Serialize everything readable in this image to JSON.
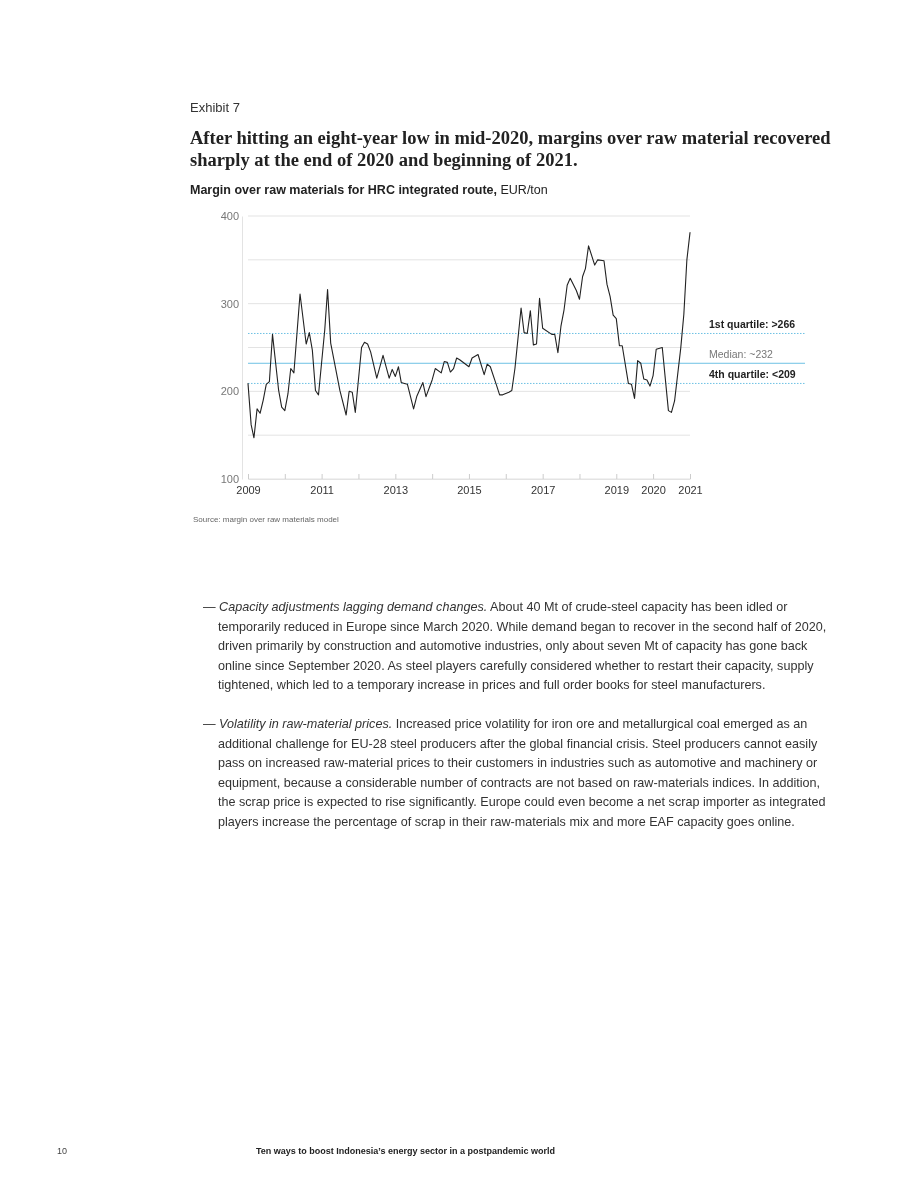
{
  "chart_data": {
    "type": "line",
    "title": "After hitting an eight-year low in mid-2020, margins over raw material recovered sharply at the end of 2020 and beginning of 2021.",
    "ylabel": "Margin over raw materials for HRC integrated route, EUR/ton",
    "annotations": [
      "Exhibit 7",
      "Source: margin over raw materials model",
      "— Capacity adjustments lagging demand changes. About 40 Mt of crude-steel capacity has been idled or temporarily reduced in Europe since March 2020. While demand began to recover in the second half of 2020, driven primarily by construction and automotive industries, only about seven Mt of capacity has gone back online since September 2020. As steel players carefully considered whether to restart their capacity, supply tightened, which led to a temporary increase in prices and full order books for steel manufacturers.",
      "— Volatility in raw-material prices. Increased price volatility for iron ore and metallurgical coal emerged as an additional challenge for EU-28 steel producers after the global financial crisis. Steel producers cannot easily pass on increased raw-material prices to their customers in industries such as automotive and machinery or equipment, because a considerable number of contracts are not based on raw-materials indices. In addition, the scrap price is expected to rise significantly. Europe could even become a net scrap importer as integrated players increase the percentage of scrap in their raw-materials mix and more EAF capacity goes online.",
      "10",
      "Ten ways to boost Indonesia’s energy sector in a postpandemic world"
    ],
    "x": [
      "2009-01",
      "2009-02",
      "2009-03",
      "2009-04",
      "2009-05",
      "2009-06",
      "2009-07",
      "2009-08",
      "2009-09",
      "2009-11",
      "2009-12",
      "2010-01",
      "2010-02",
      "2010-03",
      "2010-04",
      "2010-06",
      "2010-08",
      "2010-09",
      "2010-10",
      "2010-11",
      "2010-12",
      "2011-02",
      "2011-03",
      "2011-04",
      "2011-07",
      "2011-09",
      "2011-10",
      "2011-11",
      "2011-12",
      "2012-02",
      "2012-03",
      "2012-04",
      "2012-05",
      "2012-07",
      "2012-09",
      "2012-11",
      "2012-12",
      "2013-01",
      "2013-02",
      "2013-03",
      "2013-04",
      "2013-05",
      "2013-07",
      "2013-08",
      "2013-10",
      "2013-11",
      "2014-01",
      "2014-02",
      "2014-04",
      "2014-05",
      "2014-06",
      "2014-07",
      "2014-08",
      "2014-09",
      "2014-10",
      "2015-01",
      "2015-02",
      "2015-04",
      "2015-06",
      "2015-07",
      "2015-08",
      "2015-10",
      "2015-11",
      "2015-12",
      "2016-02",
      "2016-03",
      "2016-04",
      "2016-06",
      "2016-07",
      "2016-08",
      "2016-09",
      "2016-10",
      "2016-11",
      "2016-12",
      "2017-01",
      "2017-04",
      "2017-05",
      "2017-06",
      "2017-07",
      "2017-08",
      "2017-09",
      "2017-10",
      "2017-12",
      "2018-01",
      "2018-02",
      "2018-03",
      "2018-04",
      "2018-06",
      "2018-07",
      "2018-09",
      "2018-10",
      "2018-11",
      "2018-12",
      "2019-01",
      "2019-02",
      "2019-03",
      "2019-05",
      "2019-06",
      "2019-07",
      "2019-08",
      "2019-09",
      "2019-10",
      "2019-11",
      "2019-12",
      "2020-01",
      "2020-02",
      "2020-04",
      "2020-06",
      "2020-07",
      "2020-08",
      "2020-10",
      "2020-11",
      "2020-12",
      "2021-01"
    ],
    "series": [
      {
        "color": "#222222",
        "values": [
          209,
          162,
          147,
          180,
          175,
          190,
          208,
          211,
          265,
          201,
          182,
          178,
          197,
          226,
          221,
          311,
          254,
          267,
          247,
          201,
          196,
          270,
          316,
          255,
          201,
          173,
          200,
          199,
          176,
          250,
          256,
          254,
          245,
          215,
          241,
          215,
          225,
          217,
          228,
          210,
          209,
          208,
          180,
          194,
          210,
          194,
          213,
          226,
          221,
          234,
          233,
          222,
          226,
          238,
          236,
          228,
          238,
          242,
          219,
          231,
          228,
          207,
          196,
          196,
          199,
          201,
          226,
          295,
          267,
          266,
          292,
          253,
          254,
          306,
          272,
          265,
          265,
          244,
          274,
          293,
          321,
          329,
          315,
          305,
          331,
          340,
          366,
          344,
          350,
          349,
          322,
          308,
          287,
          283,
          252,
          252,
          209,
          208,
          192,
          235,
          232,
          214,
          213,
          206,
          218,
          248,
          250,
          178,
          176,
          189,
          249,
          288,
          350,
          381
        ]
      }
    ],
    "xlim": [
      "2009-01",
      "2021-01"
    ],
    "xticks": [
      {
        "value": "2009",
        "label": "2009"
      },
      {
        "value": "2010",
        "label": null
      },
      {
        "value": "2011",
        "label": "2011"
      },
      {
        "value": "2012",
        "label": null
      },
      {
        "value": "2013",
        "label": "2013"
      },
      {
        "value": "2014",
        "label": null
      },
      {
        "value": "2015",
        "label": "2015"
      },
      {
        "value": "2016",
        "label": null
      },
      {
        "value": "2017",
        "label": "2017"
      },
      {
        "value": "2018",
        "label": null
      },
      {
        "value": "2019",
        "label": "2019"
      },
      {
        "value": "2020",
        "label": "2020"
      },
      {
        "value": "2021",
        "label": "2021"
      }
    ],
    "ylim": [
      100,
      400
    ],
    "yticks": [
      100,
      {
        "value": 150,
        "label": null
      },
      200,
      {
        "value": 250,
        "label": null
      },
      300,
      {
        "value": 350,
        "label": null
      },
      400
    ],
    "grid": "y",
    "ref_lines": [
      {
        "axis": "y",
        "value": 266,
        "label": "1st quartile: >266",
        "color": "#6ec1e4",
        "line_style": "dotted"
      },
      {
        "axis": "y",
        "value": 232,
        "label": "Median: ~232",
        "color": "#6ec1e4",
        "line_style": "solid"
      },
      {
        "axis": "y",
        "value": 209,
        "label": "4th quartile: <209",
        "color": "#6ec1e4",
        "line_style": "dotted"
      }
    ]
  }
}
